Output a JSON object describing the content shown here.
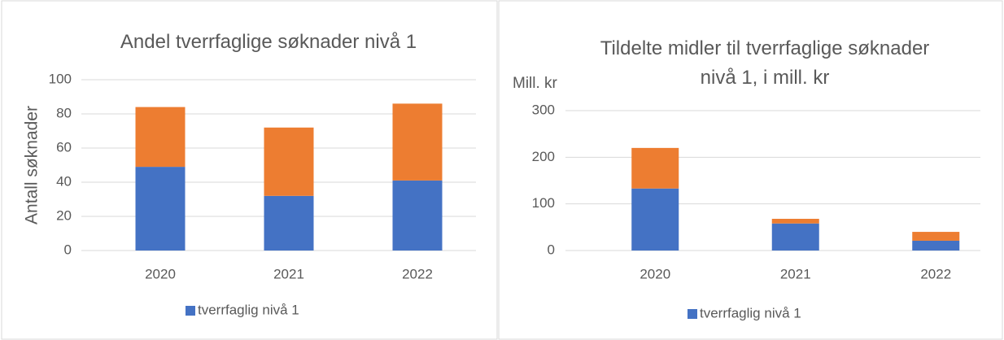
{
  "chart_data": [
    {
      "type": "bar",
      "stacked": true,
      "title": "Andel tverrfaglige søknader nivå 1",
      "ylabel": "Antall søknader",
      "categories": [
        "2020",
        "2021",
        "2022"
      ],
      "series": [
        {
          "name": "tverrfaglig nivå 1",
          "color": "#4472c4",
          "values": [
            49,
            32,
            41
          ]
        },
        {
          "color": "#ed7d31",
          "values": [
            35,
            40,
            45
          ]
        }
      ],
      "ylim": [
        0,
        100
      ],
      "yticks": [
        0,
        20,
        40,
        60,
        80,
        100
      ],
      "grid": true,
      "legend": "bottom"
    },
    {
      "type": "bar",
      "stacked": true,
      "title": "Tildelte midler til tverrfaglige søknader nivå 1, i mill. kr",
      "ylabel": "Mill. kr",
      "categories": [
        "2020",
        "2021",
        "2022"
      ],
      "series": [
        {
          "name": "tverrfaglig nivå 1",
          "color": "#4472c4",
          "values": [
            133,
            58,
            21
          ]
        },
        {
          "color": "#ed7d31",
          "values": [
            87,
            10,
            19
          ]
        }
      ],
      "ylim": [
        0,
        300
      ],
      "yticks": [
        0,
        100,
        200,
        300
      ],
      "grid": true,
      "legend": "bottom"
    }
  ]
}
